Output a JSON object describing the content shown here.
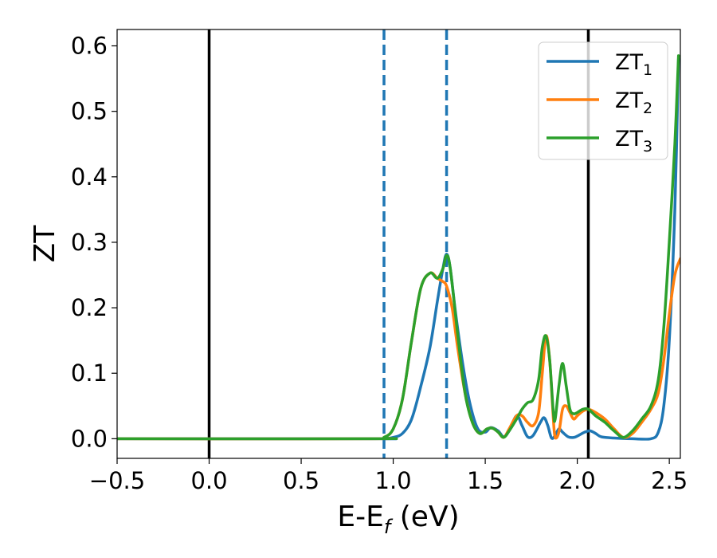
{
  "chart_data": {
    "type": "line",
    "xlabel": {
      "main": "E-E",
      "sub": "f",
      "unit": " (eV)"
    },
    "ylabel": "ZT",
    "xlim": [
      -0.5,
      2.56
    ],
    "ylim": [
      -0.03,
      0.625
    ],
    "x_ticks": [
      -0.5,
      0.0,
      0.5,
      1.0,
      1.5,
      2.0,
      2.5
    ],
    "x_tick_labels": [
      "−0.5",
      "0.0",
      "0.5",
      "1.0",
      "1.5",
      "2.0",
      "2.5"
    ],
    "y_ticks": [
      0.0,
      0.1,
      0.2,
      0.3,
      0.4,
      0.5,
      0.6
    ],
    "y_tick_labels": [
      "0.0",
      "0.1",
      "0.2",
      "0.3",
      "0.4",
      "0.5",
      "0.6"
    ],
    "legend_position": "top-right",
    "grid": false,
    "vertical_lines": [
      {
        "x": 0.0,
        "style": "solid",
        "color": "#000000"
      },
      {
        "x": 0.95,
        "style": "dashed",
        "color": "#1f77b4"
      },
      {
        "x": 1.29,
        "style": "dashed",
        "color": "#1f77b4"
      },
      {
        "x": 2.06,
        "style": "solid",
        "color": "#000000"
      }
    ],
    "series": [
      {
        "name": "ZT",
        "subscript": "1",
        "color": "#1f77b4",
        "points": [
          [
            -0.5,
            0
          ],
          [
            0.9,
            0
          ],
          [
            0.95,
            0
          ],
          [
            1.0,
            0.002
          ],
          [
            1.05,
            0.008
          ],
          [
            1.1,
            0.03
          ],
          [
            1.15,
            0.08
          ],
          [
            1.2,
            0.14
          ],
          [
            1.24,
            0.21
          ],
          [
            1.27,
            0.26
          ],
          [
            1.29,
            0.282
          ],
          [
            1.31,
            0.26
          ],
          [
            1.34,
            0.19
          ],
          [
            1.38,
            0.11
          ],
          [
            1.42,
            0.05
          ],
          [
            1.46,
            0.015
          ],
          [
            1.5,
            0.01
          ],
          [
            1.53,
            0.017
          ],
          [
            1.57,
            0.012
          ],
          [
            1.6,
            0.003
          ],
          [
            1.63,
            0.012
          ],
          [
            1.67,
            0.035
          ],
          [
            1.7,
            0.02
          ],
          [
            1.73,
            0.003
          ],
          [
            1.76,
            0.005
          ],
          [
            1.8,
            0.025
          ],
          [
            1.82,
            0.032
          ],
          [
            1.84,
            0.02
          ],
          [
            1.86,
            0.001
          ],
          [
            1.88,
            0.005
          ],
          [
            1.9,
            0.015
          ],
          [
            1.92,
            0.01
          ],
          [
            1.95,
            0.003
          ],
          [
            1.98,
            0.002
          ],
          [
            2.0,
            0.004
          ],
          [
            2.04,
            0.01
          ],
          [
            2.07,
            0.012
          ],
          [
            2.1,
            0.008
          ],
          [
            2.13,
            0.003
          ],
          [
            2.2,
            0.001
          ],
          [
            2.3,
            0
          ],
          [
            2.4,
            0
          ],
          [
            2.44,
            0.01
          ],
          [
            2.47,
            0.05
          ],
          [
            2.5,
            0.15
          ],
          [
            2.53,
            0.35
          ],
          [
            2.55,
            0.58
          ]
        ]
      },
      {
        "name": "ZT",
        "subscript": "2",
        "color": "#ff7f0e",
        "points": [
          [
            -0.5,
            0
          ],
          [
            0.9,
            0
          ],
          [
            0.95,
            0.002
          ],
          [
            1.0,
            0.015
          ],
          [
            1.05,
            0.06
          ],
          [
            1.1,
            0.15
          ],
          [
            1.15,
            0.23
          ],
          [
            1.2,
            0.253
          ],
          [
            1.24,
            0.245
          ],
          [
            1.27,
            0.24
          ],
          [
            1.29,
            0.233
          ],
          [
            1.32,
            0.2
          ],
          [
            1.35,
            0.14
          ],
          [
            1.39,
            0.07
          ],
          [
            1.43,
            0.025
          ],
          [
            1.47,
            0.008
          ],
          [
            1.51,
            0.015
          ],
          [
            1.54,
            0.016
          ],
          [
            1.57,
            0.01
          ],
          [
            1.6,
            0.002
          ],
          [
            1.63,
            0.015
          ],
          [
            1.67,
            0.035
          ],
          [
            1.7,
            0.035
          ],
          [
            1.73,
            0.025
          ],
          [
            1.76,
            0.02
          ],
          [
            1.79,
            0.04
          ],
          [
            1.81,
            0.1
          ],
          [
            1.83,
            0.157
          ],
          [
            1.85,
            0.12
          ],
          [
            1.87,
            0.03
          ],
          [
            1.88,
            0.002
          ],
          [
            1.9,
            0.01
          ],
          [
            1.92,
            0.045
          ],
          [
            1.94,
            0.05
          ],
          [
            1.96,
            0.04
          ],
          [
            1.98,
            0.03
          ],
          [
            2.0,
            0.035
          ],
          [
            2.03,
            0.042
          ],
          [
            2.06,
            0.045
          ],
          [
            2.1,
            0.04
          ],
          [
            2.15,
            0.03
          ],
          [
            2.2,
            0.015
          ],
          [
            2.25,
            0.002
          ],
          [
            2.3,
            0.008
          ],
          [
            2.35,
            0.025
          ],
          [
            2.4,
            0.045
          ],
          [
            2.44,
            0.07
          ],
          [
            2.47,
            0.12
          ],
          [
            2.5,
            0.19
          ],
          [
            2.53,
            0.25
          ],
          [
            2.56,
            0.275
          ]
        ]
      },
      {
        "name": "ZT",
        "subscript": "3",
        "color": "#2ca02c",
        "points": [
          [
            -0.5,
            0
          ],
          [
            0.9,
            0
          ],
          [
            0.95,
            0.002
          ],
          [
            1.0,
            0.015
          ],
          [
            1.05,
            0.06
          ],
          [
            1.1,
            0.15
          ],
          [
            1.15,
            0.23
          ],
          [
            1.2,
            0.253
          ],
          [
            1.24,
            0.245
          ],
          [
            1.27,
            0.26
          ],
          [
            1.29,
            0.28
          ],
          [
            1.31,
            0.26
          ],
          [
            1.35,
            0.16
          ],
          [
            1.39,
            0.07
          ],
          [
            1.43,
            0.025
          ],
          [
            1.47,
            0.008
          ],
          [
            1.51,
            0.015
          ],
          [
            1.54,
            0.016
          ],
          [
            1.57,
            0.01
          ],
          [
            1.6,
            0.002
          ],
          [
            1.63,
            0.012
          ],
          [
            1.67,
            0.03
          ],
          [
            1.7,
            0.045
          ],
          [
            1.73,
            0.055
          ],
          [
            1.76,
            0.06
          ],
          [
            1.79,
            0.09
          ],
          [
            1.81,
            0.14
          ],
          [
            1.83,
            0.157
          ],
          [
            1.85,
            0.12
          ],
          [
            1.87,
            0.04
          ],
          [
            1.88,
            0.03
          ],
          [
            1.9,
            0.08
          ],
          [
            1.92,
            0.115
          ],
          [
            1.94,
            0.08
          ],
          [
            1.96,
            0.045
          ],
          [
            1.98,
            0.038
          ],
          [
            2.0,
            0.04
          ],
          [
            2.03,
            0.045
          ],
          [
            2.06,
            0.045
          ],
          [
            2.1,
            0.035
          ],
          [
            2.15,
            0.025
          ],
          [
            2.2,
            0.012
          ],
          [
            2.25,
            0.002
          ],
          [
            2.3,
            0.012
          ],
          [
            2.35,
            0.03
          ],
          [
            2.4,
            0.05
          ],
          [
            2.44,
            0.09
          ],
          [
            2.47,
            0.17
          ],
          [
            2.5,
            0.3
          ],
          [
            2.53,
            0.45
          ],
          [
            2.55,
            0.585
          ]
        ]
      }
    ]
  }
}
